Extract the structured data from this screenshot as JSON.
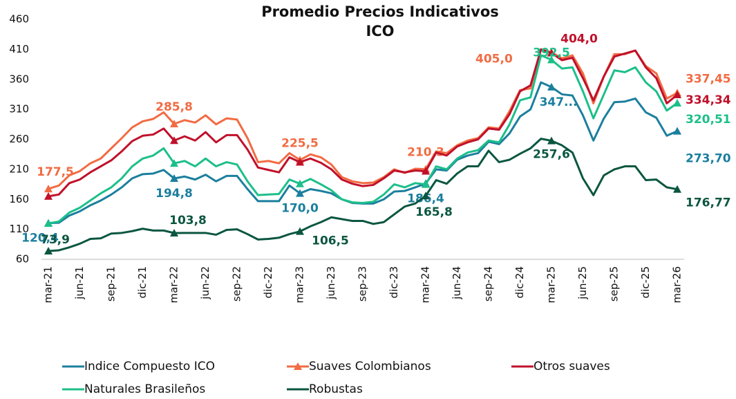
{
  "chart_data": {
    "type": "line",
    "title": [
      "Promedio Precios Indicativos",
      "ICO"
    ],
    "categories": [
      "mar-21",
      null,
      null,
      "jun-21",
      null,
      null,
      "sep-21",
      null,
      null,
      "dic-21",
      null,
      null,
      "mar-22",
      null,
      null,
      "jun-22",
      null,
      null,
      "sep-22",
      null,
      null,
      "dic-22",
      null,
      null,
      "mar-23",
      null,
      null,
      "jun-23",
      null,
      null,
      "sep-23",
      null,
      null,
      "dic-23",
      null,
      null,
      "mar-24",
      null,
      null,
      "jun-24",
      null,
      null,
      "sep-24",
      null,
      null,
      "dic-24",
      null,
      null,
      "mar-25",
      null,
      null,
      "jun-25",
      null,
      null,
      "sep-25",
      null,
      null,
      "dic-25",
      null,
      null,
      "mar-26"
    ],
    "ylim": [
      60,
      460
    ],
    "yticks": [
      60,
      110,
      160,
      210,
      260,
      310,
      360,
      410,
      460
    ],
    "grid": false,
    "series": [
      {
        "name": "Indice Compuesto ICO",
        "color": "#1b7f9e",
        "values": [
          120.4,
          121,
          133,
          140,
          150,
          158,
          168,
          180,
          195,
          202,
          203,
          209,
          194.8,
          198,
          193,
          201,
          190,
          199,
          199,
          177,
          157,
          157,
          157,
          183,
          170.0,
          177,
          174,
          170,
          160,
          154,
          153,
          153,
          160,
          173,
          174,
          180,
          186.4,
          210,
          208,
          226,
          233,
          237,
          256,
          252,
          270,
          298,
          310,
          355,
          347.2,
          335,
          333,
          300,
          258,
          295,
          322,
          323,
          328,
          305,
          296,
          266,
          273.7
        ],
        "value_labels": [
          "120,4",
          null,
          null,
          null,
          null,
          null,
          null,
          null,
          null,
          null,
          null,
          null,
          "194,8",
          null,
          null,
          null,
          null,
          null,
          null,
          null,
          null,
          null,
          null,
          null,
          "170,0",
          null,
          null,
          null,
          null,
          null,
          null,
          null,
          null,
          null,
          null,
          null,
          "186,4",
          null,
          null,
          null,
          null,
          null,
          null,
          null,
          null,
          null,
          null,
          null,
          "347...",
          null,
          null,
          null,
          null,
          null,
          null,
          null,
          null,
          null,
          null,
          null,
          "273,70"
        ]
      },
      {
        "name": "Suaves Colombianos",
        "color": "#f26b43",
        "values": [
          177.5,
          183,
          200,
          207,
          220,
          228,
          245,
          262,
          280,
          290,
          294,
          305,
          285.8,
          292,
          288,
          300,
          285,
          295,
          293,
          262,
          222,
          224,
          220,
          237,
          225.5,
          235,
          230,
          218,
          197,
          190,
          187,
          188,
          197,
          210,
          204,
          211,
          210.3,
          240,
          237,
          250,
          258,
          262,
          280,
          278,
          307,
          342,
          345,
          410,
          405.0,
          395,
          400,
          370,
          320,
          365,
          402,
          402,
          408,
          382,
          370,
          328,
          337.45
        ],
        "value_labels": [
          "177,5",
          null,
          null,
          null,
          null,
          null,
          null,
          null,
          null,
          null,
          null,
          null,
          "285,8",
          null,
          null,
          null,
          null,
          null,
          null,
          null,
          null,
          null,
          null,
          null,
          "225,5",
          null,
          null,
          null,
          null,
          null,
          null,
          null,
          null,
          null,
          null,
          null,
          "210,3",
          null,
          null,
          null,
          null,
          null,
          null,
          null,
          null,
          null,
          null,
          null,
          "405,0",
          null,
          null,
          null,
          null,
          null,
          null,
          null,
          null,
          null,
          null,
          null,
          "337,45"
        ]
      },
      {
        "name": "Otros suaves",
        "color": "#c0102a",
        "values": [
          165,
          168,
          187,
          193,
          205,
          215,
          225,
          240,
          257,
          266,
          268,
          278,
          258,
          265,
          258,
          272,
          255,
          267,
          267,
          243,
          213,
          209,
          205,
          230,
          222,
          228,
          221,
          210,
          193,
          186,
          182,
          184,
          195,
          208,
          205,
          208,
          207,
          238,
          233,
          248,
          255,
          260,
          278,
          276,
          302,
          340,
          350,
          410,
          404.0,
          392,
          396,
          362,
          325,
          365,
          398,
          403,
          408,
          380,
          362,
          320,
          334.34
        ],
        "value_labels": [
          null,
          null,
          null,
          null,
          null,
          null,
          null,
          null,
          null,
          null,
          null,
          null,
          null,
          null,
          null,
          null,
          null,
          null,
          null,
          null,
          null,
          null,
          null,
          null,
          null,
          null,
          null,
          null,
          null,
          null,
          null,
          null,
          null,
          null,
          null,
          null,
          null,
          null,
          null,
          null,
          null,
          null,
          null,
          null,
          null,
          null,
          null,
          null,
          "404,0",
          null,
          null,
          null,
          null,
          null,
          null,
          null,
          null,
          null,
          null,
          null,
          "334,34"
        ]
      },
      {
        "name": "Naturales Brasileños",
        "color": "#1cbf8a",
        "values": [
          120,
          123,
          138,
          146,
          158,
          170,
          180,
          195,
          215,
          228,
          233,
          245,
          220,
          224,
          215,
          228,
          215,
          222,
          218,
          190,
          167,
          168,
          169,
          193,
          186,
          194,
          185,
          175,
          160,
          155,
          154,
          156,
          168,
          185,
          180,
          187,
          185,
          215,
          210,
          228,
          238,
          242,
          258,
          255,
          285,
          325,
          330,
          400,
          392.5,
          378,
          380,
          340,
          295,
          335,
          375,
          372,
          380,
          355,
          340,
          308,
          320.51
        ],
        "value_labels": [
          null,
          null,
          null,
          null,
          null,
          null,
          null,
          null,
          null,
          null,
          null,
          null,
          null,
          null,
          null,
          null,
          null,
          null,
          null,
          null,
          null,
          null,
          null,
          null,
          null,
          null,
          null,
          null,
          null,
          null,
          null,
          null,
          null,
          null,
          null,
          null,
          null,
          null,
          null,
          null,
          null,
          null,
          null,
          null,
          null,
          null,
          null,
          null,
          "392,5",
          null,
          null,
          null,
          null,
          null,
          null,
          null,
          null,
          null,
          null,
          null,
          "320,51"
        ]
      },
      {
        "name": "Robustas",
        "color": "#0b5640",
        "values": [
          73.9,
          75,
          80,
          86,
          94,
          95,
          103,
          104,
          107,
          111,
          108,
          108,
          103.8,
          104,
          104,
          104,
          101,
          109,
          110,
          102,
          93,
          94,
          96,
          102,
          106.5,
          115,
          122,
          130,
          127,
          124,
          124,
          119,
          122,
          135,
          148,
          153,
          165.8,
          192,
          186,
          203,
          215,
          215,
          241,
          222,
          226,
          236,
          245,
          261,
          257.6,
          250,
          238,
          195,
          167,
          200,
          210,
          215,
          215,
          192,
          193,
          180,
          176.77
        ],
        "value_labels": [
          "73,9",
          null,
          null,
          null,
          null,
          null,
          null,
          null,
          null,
          null,
          null,
          null,
          "103,8",
          null,
          null,
          null,
          null,
          null,
          null,
          null,
          null,
          null,
          null,
          null,
          "106,5",
          null,
          null,
          null,
          null,
          null,
          null,
          null,
          null,
          null,
          null,
          null,
          "165,8",
          null,
          null,
          null,
          null,
          null,
          null,
          null,
          null,
          null,
          null,
          null,
          "257,6",
          null,
          null,
          null,
          null,
          null,
          null,
          null,
          null,
          null,
          null,
          null,
          "176,77"
        ]
      }
    ]
  }
}
